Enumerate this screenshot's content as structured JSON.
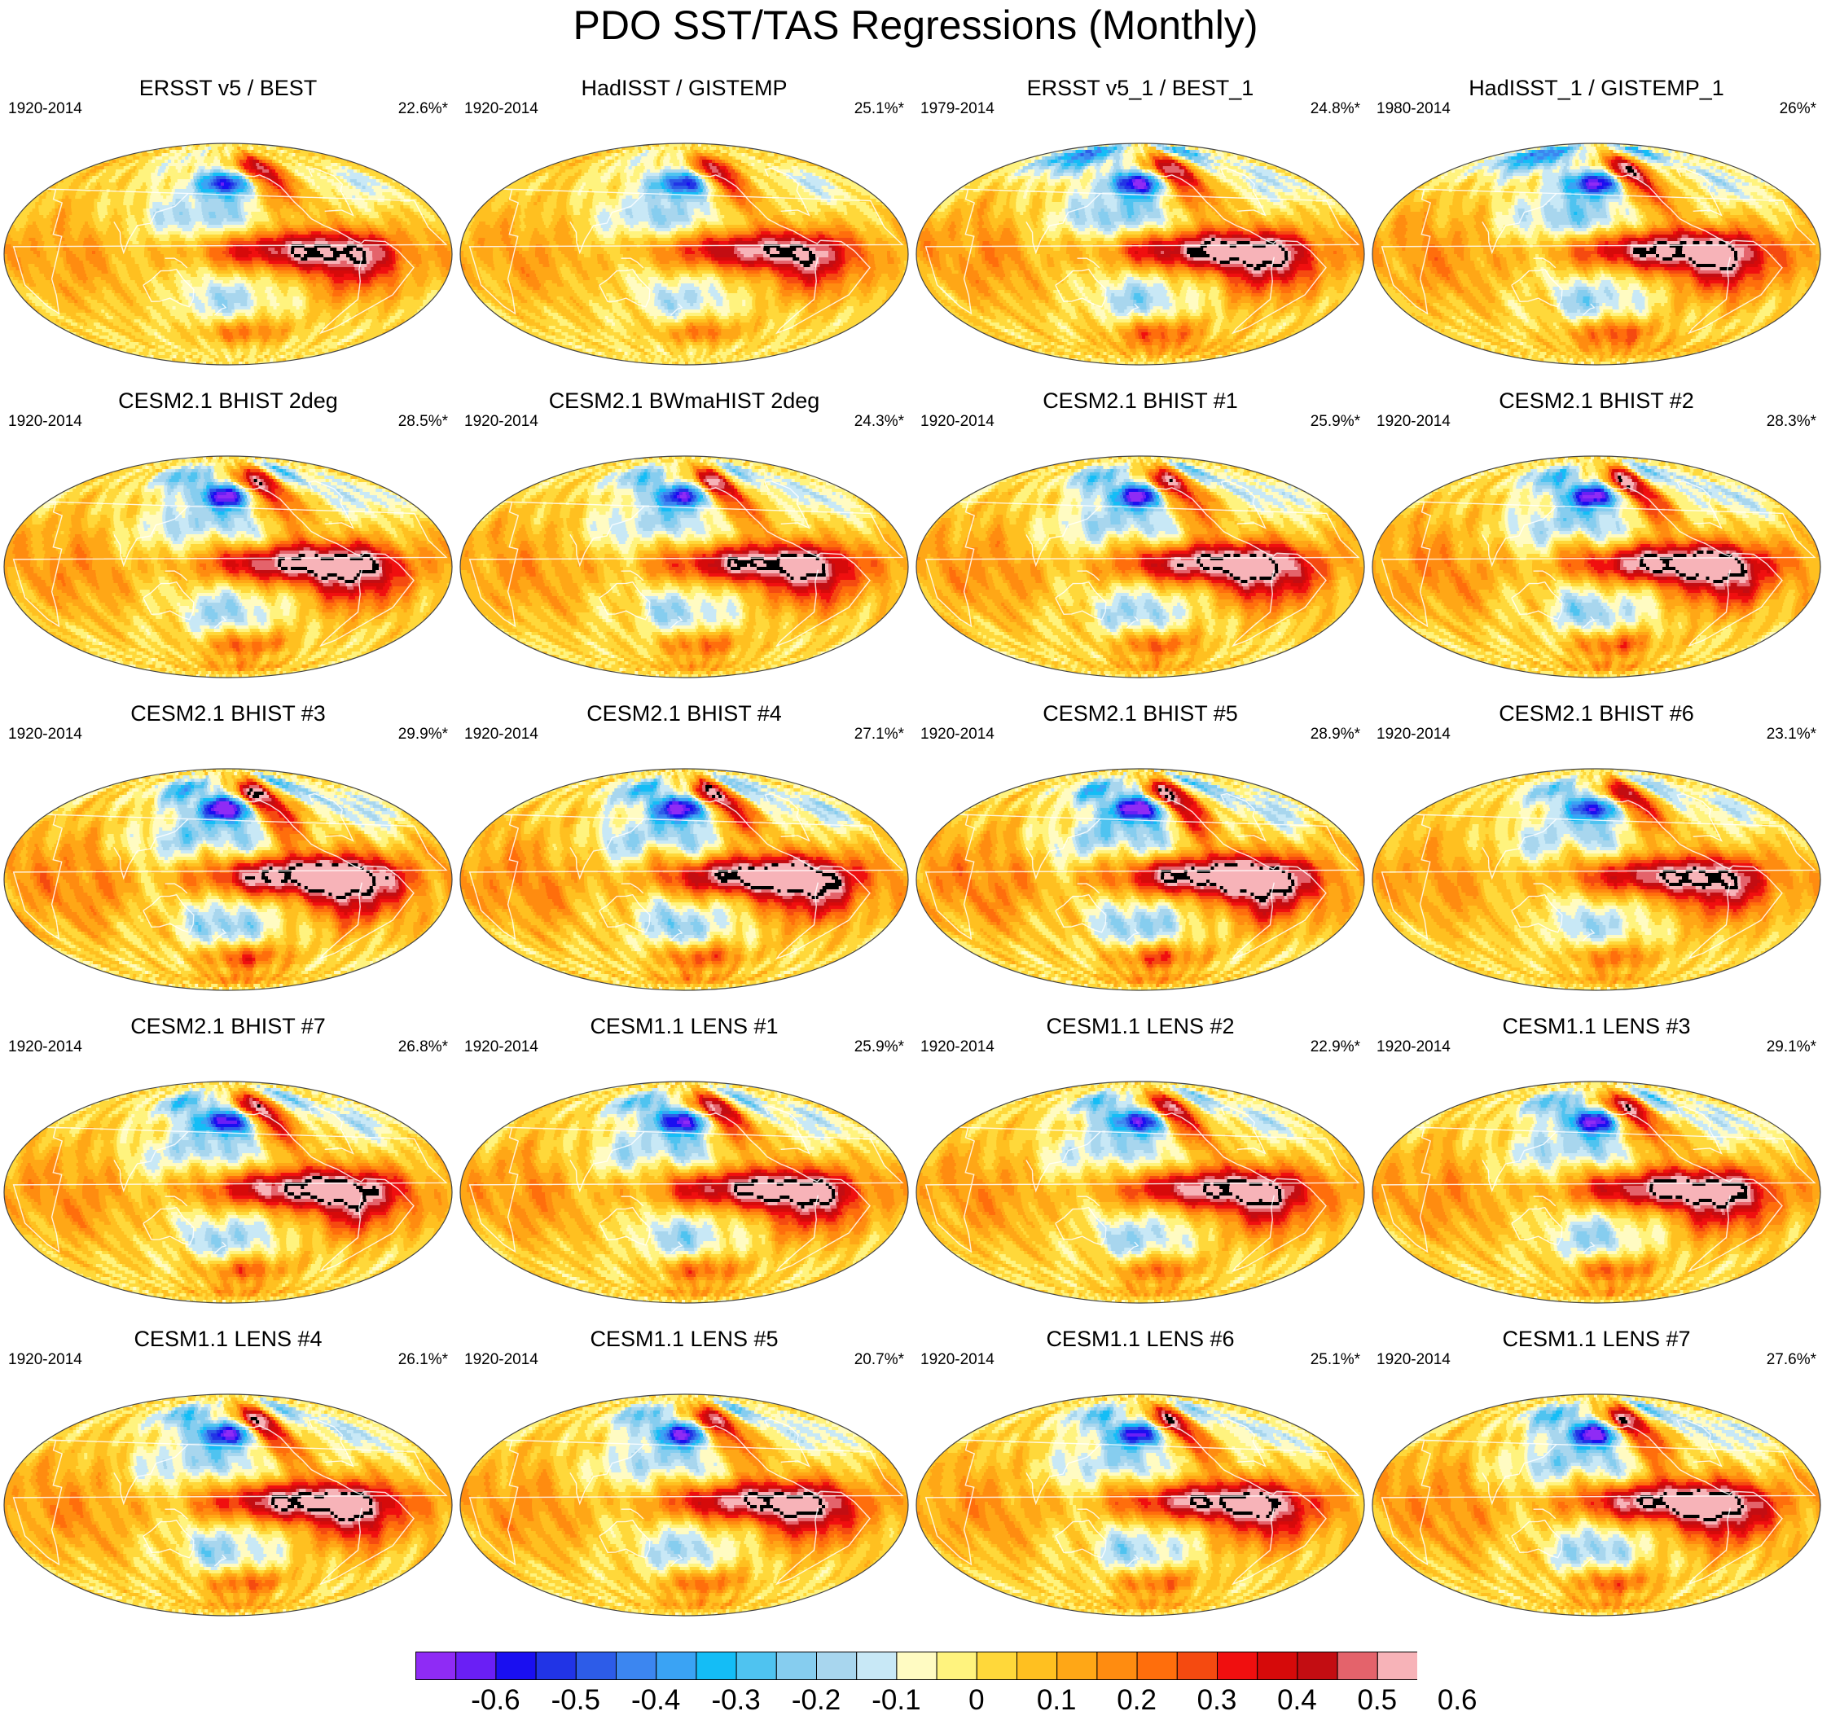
{
  "title": "PDO SST/TAS Regressions (Monthly)",
  "panels": [
    {
      "title": "ERSST v5 / BEST",
      "period": "1920-2014",
      "pct": "22.6%*",
      "amp": 0.88,
      "style": "obs"
    },
    {
      "title": "HadISST / GISTEMP",
      "period": "1920-2014",
      "pct": "25.1%*",
      "amp": 0.85,
      "style": "obs"
    },
    {
      "title": "ERSST v5_1 / BEST_1",
      "period": "1979-2014",
      "pct": "24.8%*",
      "amp": 1.0,
      "style": "obs_recent"
    },
    {
      "title": "HadISST_1 / GISTEMP_1",
      "period": "1980-2014",
      "pct": "26%*",
      "amp": 1.0,
      "style": "obs_recent"
    },
    {
      "title": "CESM2.1 BHIST 2deg",
      "period": "1920-2014",
      "pct": "28.5%*",
      "amp": 1.0,
      "style": "model"
    },
    {
      "title": "CESM2.1 BWmaHIST 2deg",
      "period": "1920-2014",
      "pct": "24.3%*",
      "amp": 0.95,
      "style": "model"
    },
    {
      "title": "CESM2.1 BHIST #1",
      "period": "1920-2014",
      "pct": "25.9%*",
      "amp": 1.0,
      "style": "model"
    },
    {
      "title": "CESM2.1 BHIST #2",
      "period": "1920-2014",
      "pct": "28.3%*",
      "amp": 1.05,
      "style": "model"
    },
    {
      "title": "CESM2.1 BHIST #3",
      "period": "1920-2014",
      "pct": "29.9%*",
      "amp": 1.15,
      "style": "model"
    },
    {
      "title": "CESM2.1 BHIST #4",
      "period": "1920-2014",
      "pct": "27.1%*",
      "amp": 1.1,
      "style": "model"
    },
    {
      "title": "CESM2.1 BHIST #5",
      "period": "1920-2014",
      "pct": "28.9%*",
      "amp": 1.15,
      "style": "model"
    },
    {
      "title": "CESM2.1 BHIST #6",
      "period": "1920-2014",
      "pct": "23.1%*",
      "amp": 0.9,
      "style": "model"
    },
    {
      "title": "CESM2.1 BHIST #7",
      "period": "1920-2014",
      "pct": "26.8%*",
      "amp": 1.0,
      "style": "model"
    },
    {
      "title": "CESM1.1 LENS #1",
      "period": "1920-2014",
      "pct": "25.9%*",
      "amp": 1.0,
      "style": "model"
    },
    {
      "title": "CESM1.1 LENS #2",
      "period": "1920-2014",
      "pct": "22.9%*",
      "amp": 0.95,
      "style": "model"
    },
    {
      "title": "CESM1.1 LENS #3",
      "period": "1920-2014",
      "pct": "29.1%*",
      "amp": 1.0,
      "style": "model"
    },
    {
      "title": "CESM1.1 LENS #4",
      "period": "1920-2014",
      "pct": "26.1%*",
      "amp": 1.0,
      "style": "model"
    },
    {
      "title": "CESM1.1 LENS #5",
      "period": "1920-2014",
      "pct": "20.7%*",
      "amp": 0.95,
      "style": "model"
    },
    {
      "title": "CESM1.1 LENS #6",
      "period": "1920-2014",
      "pct": "25.1%*",
      "amp": 0.95,
      "style": "model"
    },
    {
      "title": "CESM1.1 LENS #7",
      "period": "1920-2014",
      "pct": "27.6%*",
      "amp": 1.05,
      "style": "model"
    }
  ],
  "colorbar": {
    "colors": [
      "#8f2bf5",
      "#6a1ff5",
      "#1a0ff0",
      "#2134e6",
      "#2d5ce8",
      "#3c86f0",
      "#3aa3f4",
      "#14bdf6",
      "#4fc3f0",
      "#86cdef",
      "#a8d6ee",
      "#c8e8f6",
      "#fffbc2",
      "#fff37e",
      "#ffd83a",
      "#ffc020",
      "#ffa716",
      "#ff8c10",
      "#ff6e0c",
      "#f54a10",
      "#f00f0f",
      "#d60a0a",
      "#c30d12",
      "#e4636b",
      "#f7b3b8"
    ],
    "levels": [
      -0.65,
      -0.6,
      -0.55,
      -0.5,
      -0.45,
      -0.4,
      -0.35,
      -0.3,
      -0.25,
      -0.2,
      -0.15,
      -0.1,
      -0.05,
      0,
      0.05,
      0.1,
      0.15,
      0.2,
      0.25,
      0.3,
      0.35,
      0.4,
      0.45,
      0.5,
      0.55,
      0.6
    ],
    "labels": [
      "-0.6",
      "-0.5",
      "-0.4",
      "-0.3",
      "-0.2",
      "-0.1",
      "0",
      "0.1",
      "0.2",
      "0.3",
      "0.4",
      "0.5",
      "0.6"
    ]
  }
}
